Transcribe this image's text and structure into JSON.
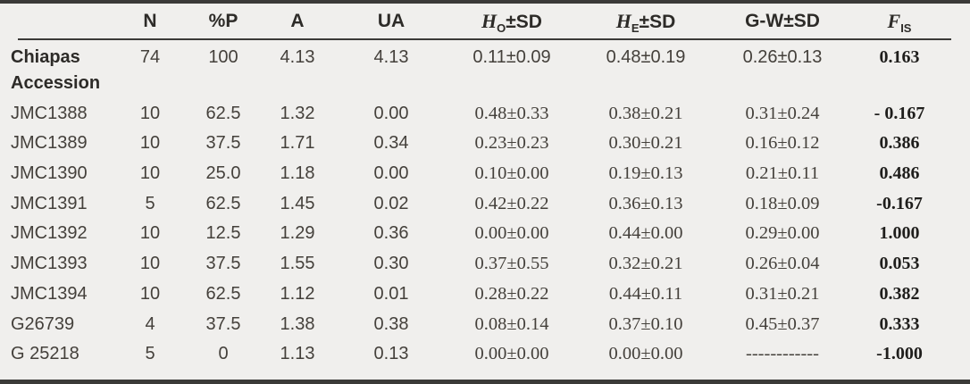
{
  "table": {
    "headers": {
      "label": "",
      "n": "N",
      "pp": "%P",
      "a": "A",
      "ua": "UA",
      "ho": {
        "main": "H",
        "sub": "O",
        "suffix": "±SD"
      },
      "he": {
        "main": "H",
        "sub": "E",
        "suffix": "±SD"
      },
      "gw": "G-W±SD",
      "fis": {
        "main": "F",
        "sub": "IS",
        "suffix": ""
      }
    },
    "rows": [
      {
        "label": "Chiapas",
        "n": "74",
        "pp": "100",
        "a": "4.13",
        "ua": "4.13",
        "ho": "0.11±0.09",
        "he": "0.48±0.19",
        "gw": "0.26±0.13",
        "fis": "0.163"
      },
      {
        "label": "Accession",
        "n": "",
        "pp": "",
        "a": "",
        "ua": "",
        "ho": "",
        "he": "",
        "gw": "",
        "fis": ""
      },
      {
        "label": "JMC1388",
        "n": "10",
        "pp": "62.5",
        "a": "1.32",
        "ua": "0.00",
        "ho": "0.48±0.33",
        "he": "0.38±0.21",
        "gw": "0.31±0.24",
        "fis": "- 0.167"
      },
      {
        "label": "JMC1389",
        "n": "10",
        "pp": "37.5",
        "a": "1.71",
        "ua": "0.34",
        "ho": "0.23±0.23",
        "he": "0.30±0.21",
        "gw": "0.16±0.12",
        "fis": "0.386"
      },
      {
        "label": "JMC1390",
        "n": "10",
        "pp": "25.0",
        "a": "1.18",
        "ua": "0.00",
        "ho": "0.10±0.00",
        "he": "0.19±0.13",
        "gw": "0.21±0.11",
        "fis": "0.486"
      },
      {
        "label": "JMC1391",
        "n": "5",
        "pp": "62.5",
        "a": "1.45",
        "ua": "0.02",
        "ho": "0.42±0.22",
        "he": "0.36±0.13",
        "gw": "0.18±0.09",
        "fis": "-0.167"
      },
      {
        "label": "JMC1392",
        "n": "10",
        "pp": "12.5",
        "a": "1.29",
        "ua": "0.36",
        "ho": "0.00±0.00",
        "he": "0.44±0.00",
        "gw": "0.29±0.00",
        "fis": "1.000"
      },
      {
        "label": "JMC1393",
        "n": "10",
        "pp": "37.5",
        "a": "1.55",
        "ua": "0.30",
        "ho": "0.37±0.55",
        "he": "0.32±0.21",
        "gw": "0.26±0.04",
        "fis": "0.053"
      },
      {
        "label": "JMC1394",
        "n": "10",
        "pp": "62.5",
        "a": "1.12",
        "ua": "0.01",
        "ho": "0.28±0.22",
        "he": "0.44±0.11",
        "gw": "0.31±0.21",
        "fis": "0.382"
      },
      {
        "label": "G26739",
        "n": "4",
        "pp": "37.5",
        "a": "1.38",
        "ua": "0.38",
        "ho": "0.08±0.14",
        "he": "0.37±0.10",
        "gw": "0.45±0.37",
        "fis": "0.333"
      },
      {
        "label": "G 25218",
        "n": "5",
        "pp": "0",
        "a": "1.13",
        "ua": "0.13",
        "ho": "0.00±0.00",
        "he": "0.00±0.00",
        "gw": "------------",
        "fis": "-1.000"
      }
    ],
    "colors": {
      "background": "#f0efed",
      "text": "#44403b",
      "bold_text": "#1f1e1c",
      "rule": "#3b3a38"
    }
  }
}
